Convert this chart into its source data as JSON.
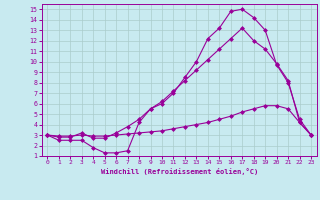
{
  "title": "",
  "xlabel": "Windchill (Refroidissement éolien,°C)",
  "bg_color": "#c8eaf0",
  "grid_color": "#aacccc",
  "line_color": "#990099",
  "xlim": [
    -0.5,
    23.5
  ],
  "ylim": [
    1,
    15.5
  ],
  "xticks": [
    0,
    1,
    2,
    3,
    4,
    5,
    6,
    7,
    8,
    9,
    10,
    11,
    12,
    13,
    14,
    15,
    16,
    17,
    18,
    19,
    20,
    21,
    22,
    23
  ],
  "yticks": [
    1,
    2,
    3,
    4,
    5,
    6,
    7,
    8,
    9,
    10,
    11,
    12,
    13,
    14,
    15
  ],
  "line1_x": [
    0,
    1,
    2,
    3,
    4,
    5,
    6,
    7,
    8,
    9,
    10,
    11,
    12,
    13,
    14,
    15,
    16,
    17,
    18,
    19,
    20,
    21,
    22,
    23
  ],
  "line1_y": [
    3.0,
    2.5,
    2.5,
    2.5,
    1.8,
    1.3,
    1.3,
    1.5,
    4.2,
    5.5,
    6.0,
    7.0,
    8.5,
    10.0,
    12.2,
    13.2,
    14.8,
    15.0,
    14.2,
    13.0,
    9.7,
    8.0,
    4.5,
    3.0
  ],
  "line2_x": [
    0,
    1,
    2,
    3,
    4,
    5,
    6,
    7,
    8,
    9,
    10,
    11,
    12,
    13,
    14,
    15,
    16,
    17,
    18,
    19,
    20,
    21,
    22,
    23
  ],
  "line2_y": [
    3.0,
    2.8,
    2.8,
    3.2,
    2.7,
    2.7,
    3.2,
    3.8,
    4.5,
    5.5,
    6.2,
    7.2,
    8.2,
    9.2,
    10.2,
    11.2,
    12.2,
    13.2,
    12.0,
    11.2,
    9.8,
    8.2,
    4.2,
    3.0
  ],
  "line3_x": [
    0,
    1,
    2,
    3,
    4,
    5,
    6,
    7,
    8,
    9,
    10,
    11,
    12,
    13,
    14,
    15,
    16,
    17,
    18,
    19,
    20,
    21,
    22,
    23
  ],
  "line3_y": [
    3.0,
    2.9,
    2.9,
    3.0,
    2.9,
    2.9,
    3.0,
    3.1,
    3.2,
    3.3,
    3.4,
    3.6,
    3.8,
    4.0,
    4.2,
    4.5,
    4.8,
    5.2,
    5.5,
    5.8,
    5.8,
    5.5,
    4.2,
    3.0
  ],
  "markersize": 2.5
}
